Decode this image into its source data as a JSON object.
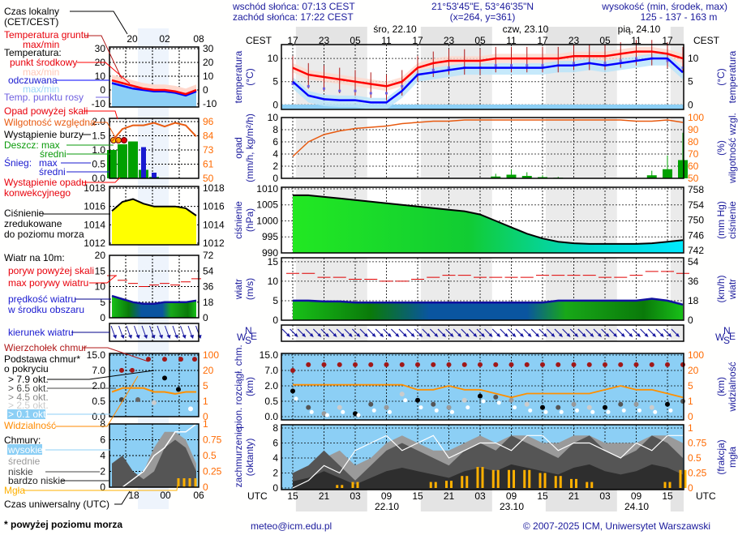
{
  "header": {
    "sunrise": "wschód słońca: 07:13 CEST",
    "sunset": "zachód słońca: 17:22 CEST",
    "coords": "21°53'45\"E, 53°46'35\"N",
    "grid": "(x=264,  y=361)",
    "elevation_label": "wysokość (min, środek, max)",
    "elevation_values": "125 - 137 - 163 m"
  },
  "time_axis": {
    "top_label": "CEST",
    "top_hours": [
      "17",
      "23",
      "05",
      "11",
      "17",
      "23",
      "05",
      "11",
      "17",
      "23",
      "05",
      "11",
      "17"
    ],
    "top_dates": [
      "śro, 22.10",
      "czw, 23.10",
      "pią, 24.10"
    ],
    "bottom_label": "UTC",
    "bottom_hours": [
      "15",
      "21",
      "03",
      "09",
      "15",
      "21",
      "03",
      "09",
      "15",
      "21",
      "03",
      "09",
      "15"
    ],
    "bottom_dates": [
      "22.10",
      "23.10",
      "24.10"
    ]
  },
  "legend": {
    "local_time": "Czas lokalny",
    "local_time_zone": "(CET/CEST)",
    "ground_temp": "Temperatura gruntu",
    "ground_temp_maxmin": "max/min",
    "temperature": "Temperatura:",
    "midpoint": "punkt środkowy",
    "midpoint_maxmin": "max/min",
    "felt": "odczuwana",
    "felt_maxmin": "max/min",
    "dew_point": "Temp. punktu rosy",
    "precip_above": "Opad powyżej skali",
    "humidity": "Wilgotność względna",
    "storm": "Wystąpienie burzy",
    "rain_max": "Deszcz: max",
    "rain_mean": "średni",
    "snow": "Śnieg:",
    "snow_max": "max",
    "snow_mean": "średni",
    "convective_1": "Wystąpienie opadu",
    "convective_2": "konwekcyjnego",
    "pressure_1": "Ciśnienie",
    "pressure_2": "zredukowane",
    "pressure_3": "do poziomu morza",
    "wind_title": "Wiatr na 10m:",
    "gust_above": "poryw powyżej skali",
    "gust_max": "max porywy wiatru",
    "wind_speed_1": "prędkość wiatru",
    "wind_speed_2": "w środku obszaru",
    "wind_dir": "kierunek wiatru",
    "cloud_top": "Wierzchołek chmur",
    "cloud_base_1": "Podstawa chmur*",
    "cloud_base_2": "o pokryciu",
    "okt": [
      "> 7.9 okt.",
      "> 6.5 okt.",
      "> 4.5 okt.",
      "> 2.5 okt.",
      "> 0.1 okt."
    ],
    "visibility": "Widzialność",
    "clouds": "Chmury:",
    "high": "wysokie",
    "mid": "średnie",
    "low": "niskie",
    "very_low": "bardzo niskie",
    "fog": "Mgła",
    "utc_time": "Czas uniwersalny (UTC)"
  },
  "mini_axes": {
    "top_hours": [
      "20",
      "02",
      "08"
    ],
    "bottom_hours": [
      "18",
      "00",
      "06"
    ],
    "temp": [
      "30",
      "20",
      "10",
      "0",
      "-10"
    ],
    "precip": [
      "2.0",
      "1.5",
      "1.0",
      "0.5",
      "0.0"
    ],
    "humidity": [
      "96",
      "84",
      "73",
      "61",
      "50"
    ],
    "pressure": [
      "1018",
      "1016",
      "1014",
      "1012"
    ],
    "wind_ms": [
      "20",
      "15",
      "10",
      "5",
      "0"
    ],
    "wind_kmh": [
      "72",
      "54",
      "36",
      "18",
      "0"
    ],
    "cloud_km": [
      "15.0",
      "7.0",
      "2.0",
      "0.5",
      "0.0"
    ],
    "visibility_km": [
      "100",
      "20",
      "5",
      "1",
      "0"
    ],
    "oktas": [
      "8",
      "6",
      "4",
      "2",
      "0"
    ],
    "fog_frac": [
      "1",
      "0.75",
      "0.5",
      "0.25",
      "0"
    ]
  },
  "panels": [
    {
      "id": "temp",
      "left_title": "temperatura",
      "left_unit": "(°C)",
      "right_title": "temperatura",
      "right_unit": "(°C)",
      "left_ticks": [
        "10",
        "5",
        "0"
      ],
      "right_ticks": [
        "10",
        "5",
        "0"
      ]
    },
    {
      "id": "precip",
      "left_title": "opad",
      "left_unit": "(mm/h, kg/m²/h)",
      "right_title": "wilgotność wzgl.",
      "right_unit": "(%)",
      "left_ticks": [
        "10",
        "8",
        "6",
        "4",
        "2",
        "0"
      ],
      "right_ticks": [
        "100",
        "90",
        "80",
        "70",
        "60",
        "50"
      ]
    },
    {
      "id": "pressure",
      "left_title": "ciśnienie",
      "left_unit": "(hPa)",
      "right_title": "ciśnienie",
      "right_unit": "(mm Hg)",
      "left_ticks": [
        "1010",
        "1005",
        "1000",
        "995",
        "990"
      ],
      "right_ticks": [
        "758",
        "754",
        "750",
        "746",
        "742"
      ]
    },
    {
      "id": "wind",
      "left_title": "wiatr",
      "left_unit": "(m/s)",
      "right_title": "wiatr",
      "right_unit": "(km/h)",
      "left_ticks": [
        "15",
        "10",
        "5",
        "0"
      ],
      "right_ticks": [
        "54",
        "36",
        "18",
        "0"
      ]
    },
    {
      "id": "cloud",
      "left_title": "pion. rozciągł. chm.",
      "left_unit": "(km)",
      "right_title": "widzialność",
      "right_unit": "(km)",
      "left_ticks": [
        "15.0",
        "7.0",
        "2.0",
        "0.5",
        "0.0"
      ],
      "right_ticks": [
        "100",
        "20",
        "5",
        "1",
        "0"
      ]
    },
    {
      "id": "cover",
      "left_title": "zachmurzenie",
      "left_unit": "(oktanty)",
      "right_title": "mgła",
      "right_unit": "(frakcja)",
      "left_ticks": [
        "8",
        "6",
        "4",
        "2",
        "0"
      ],
      "right_ticks": [
        "1",
        "0.75",
        "0.5",
        "0.25",
        "0"
      ]
    }
  ],
  "compass": {
    "n": "N",
    "s": "S",
    "w": "W",
    "e": "E"
  },
  "footer": {
    "footnote": "* powyżej poziomu morza",
    "email": "meteo@icm.edu.pl",
    "copyright": "© 2007-2025 ICM, Uniwersytet Warszawski"
  },
  "colors": {
    "temp": "#ff0000",
    "felt": "#0000ff",
    "humidity": "#e85a10",
    "rain": "#00a000",
    "pressure_start": "#00e000",
    "pressure_end": "#00e8ff",
    "fog": "#ffb000",
    "cloud_bg": "#8ccff5",
    "night": "#e6e6e6"
  },
  "chart_data": {
    "type": "line",
    "time_step_hours": 3,
    "time_start": "21.10 15 UTC",
    "temperature_c": [
      8,
      6.5,
      6,
      5.5,
      5,
      4.5,
      4,
      5,
      8,
      9,
      9.5,
      9.5,
      9.5,
      10,
      10,
      10,
      10,
      10,
      10.5,
      10.5,
      10.5,
      11,
      11.5,
      11.5,
      11,
      10
    ],
    "felt_temperature_c": [
      5,
      2,
      1.2,
      1,
      1,
      0.5,
      0.5,
      3,
      6.5,
      7,
      7.5,
      8,
      8,
      8,
      8,
      8,
      8,
      8.5,
      8.5,
      9,
      8.5,
      9,
      9.5,
      10,
      10,
      7
    ],
    "dew_point_c": [
      5.5,
      5,
      4.5,
      4,
      4,
      3.5,
      3.5,
      5,
      7.5,
      8.5,
      9,
      9,
      9,
      9.5,
      9.5,
      9.5,
      9.5,
      9.5,
      10,
      10,
      10,
      10.5,
      11,
      11,
      10.5,
      9
    ],
    "humidity_pct": [
      68,
      80,
      86,
      89,
      91,
      92,
      93,
      95,
      96,
      97,
      97,
      98,
      98,
      98,
      98,
      98,
      98,
      98,
      98,
      98,
      98,
      98,
      97,
      97,
      98,
      96
    ],
    "precip_mm_h": [
      0,
      0,
      0,
      0,
      0,
      0,
      0,
      0,
      0,
      0,
      0,
      0,
      0,
      0.3,
      0.6,
      0.4,
      0.2,
      0.1,
      0,
      0,
      0,
      0,
      0,
      0.5,
      1.5,
      3
    ],
    "pressure_hpa": [
      1008,
      1008,
      1007.5,
      1007,
      1006.5,
      1006,
      1005.5,
      1005,
      1004.5,
      1004,
      1003.5,
      1003,
      1002,
      1000,
      998,
      996,
      994.5,
      993.5,
      993,
      992.8,
      992.8,
      992.8,
      992.8,
      993,
      993.5,
      994
    ],
    "wind_ms": [
      5,
      5,
      4.8,
      4.8,
      4.5,
      4.5,
      4.5,
      4.5,
      4.5,
      4.5,
      4.5,
      4.5,
      4.5,
      4.5,
      4.5,
      4.5,
      4.5,
      5,
      5,
      5,
      5,
      5,
      5,
      5.5,
      5,
      4
    ],
    "gust_ms": [
      12,
      12,
      11,
      11,
      10.5,
      10.5,
      10,
      10,
      10.5,
      11,
      11.5,
      11.5,
      11,
      11,
      11,
      11,
      11.5,
      11.5,
      11.5,
      11.5,
      11,
      11,
      11.5,
      12.5,
      12.5,
      12
    ],
    "visibility_km": [
      6,
      6,
      6,
      6,
      6,
      6,
      6,
      6,
      4,
      4,
      5,
      4,
      4,
      3,
      2,
      3,
      3,
      3,
      3,
      3,
      4,
      5,
      4,
      4,
      3,
      2
    ],
    "cloud_top_km": [
      7,
      10,
      10,
      10,
      10,
      10,
      10,
      10,
      10,
      10,
      10,
      10,
      10,
      10,
      10,
      10,
      10,
      10,
      10,
      10,
      10,
      10,
      10,
      10,
      10,
      10
    ],
    "cloud_base_km": [
      1.5,
      0.3,
      0.1,
      0.3,
      0.1,
      0.4,
      0.3,
      1.2,
      0.6,
      0.4,
      0.3,
      0.6,
      1.0,
      0.9,
      0.6,
      0.4,
      0.3,
      0.3,
      0.4,
      0.3,
      0.3,
      0.4,
      0.4,
      0.3,
      0.4,
      0.5
    ],
    "low_clouds_okt": [
      2,
      3,
      5,
      3,
      1,
      3,
      5,
      6,
      5,
      4,
      3,
      5,
      6,
      5,
      7,
      6,
      5,
      4,
      6,
      7,
      5,
      4,
      5,
      7,
      6,
      4
    ],
    "mid_clouds_okt": [
      1,
      2,
      4,
      5,
      3,
      4,
      6,
      7,
      6,
      5,
      5,
      6,
      7,
      6,
      7,
      7,
      6,
      6,
      7,
      7,
      6,
      6,
      6,
      7,
      7,
      6
    ],
    "high_clouds_okt": [
      0,
      1,
      3,
      2,
      5,
      6,
      7,
      5,
      6,
      7,
      4,
      5,
      6,
      6,
      5,
      7,
      7,
      5,
      6,
      6,
      5,
      4,
      6,
      5,
      7,
      7
    ],
    "fog_fraction": [
      0,
      0,
      0,
      0.05,
      0.1,
      0,
      0,
      0,
      0,
      0.1,
      0.12,
      0.2,
      0.35,
      0.3,
      0.3,
      0.3,
      0.25,
      0.2,
      0.15,
      0.1,
      0,
      0,
      0,
      0,
      0.1,
      0.3
    ],
    "legend_example": {
      "temperature_c": [
        7,
        5,
        3,
        1,
        0,
        0,
        -1,
        -3,
        0
      ],
      "felt_temperature_c": [
        5,
        3,
        1,
        0,
        -1,
        -1,
        -2,
        -4,
        -1
      ],
      "humidity_pct": [
        80,
        90,
        93,
        93,
        95,
        92,
        95,
        93,
        84
      ],
      "rain_mm_h": [
        1.0,
        1.2,
        1.3,
        0.3,
        0.05,
        0,
        0,
        0,
        0
      ],
      "snow_mm_h": [
        0,
        0,
        0,
        1.1,
        0.2,
        0,
        0,
        0,
        0
      ],
      "pressure_hpa": [
        1015.5,
        1016.5,
        1016.8,
        1016.3,
        1016,
        1016,
        1016,
        1015.8,
        1015
      ],
      "wind_ms": [
        7,
        6,
        5,
        4.5,
        4.5,
        5,
        5,
        5,
        5.5
      ],
      "gust_ms": [
        13.5,
        12,
        11,
        10,
        10.5,
        11,
        10.5,
        11.5,
        12.5
      ],
      "visibility_km": [
        3,
        4,
        4,
        4,
        3,
        3,
        2.5,
        3,
        3
      ],
      "low_clouds_okt": [
        3,
        4,
        2,
        1,
        2,
        5,
        6,
        5,
        2
      ],
      "mid_clouds_okt": [
        1,
        2,
        1,
        2,
        5,
        7,
        7,
        6,
        3
      ],
      "high_clouds_okt": [
        0,
        0,
        1,
        2,
        4,
        5,
        7,
        7,
        8
      ]
    }
  }
}
